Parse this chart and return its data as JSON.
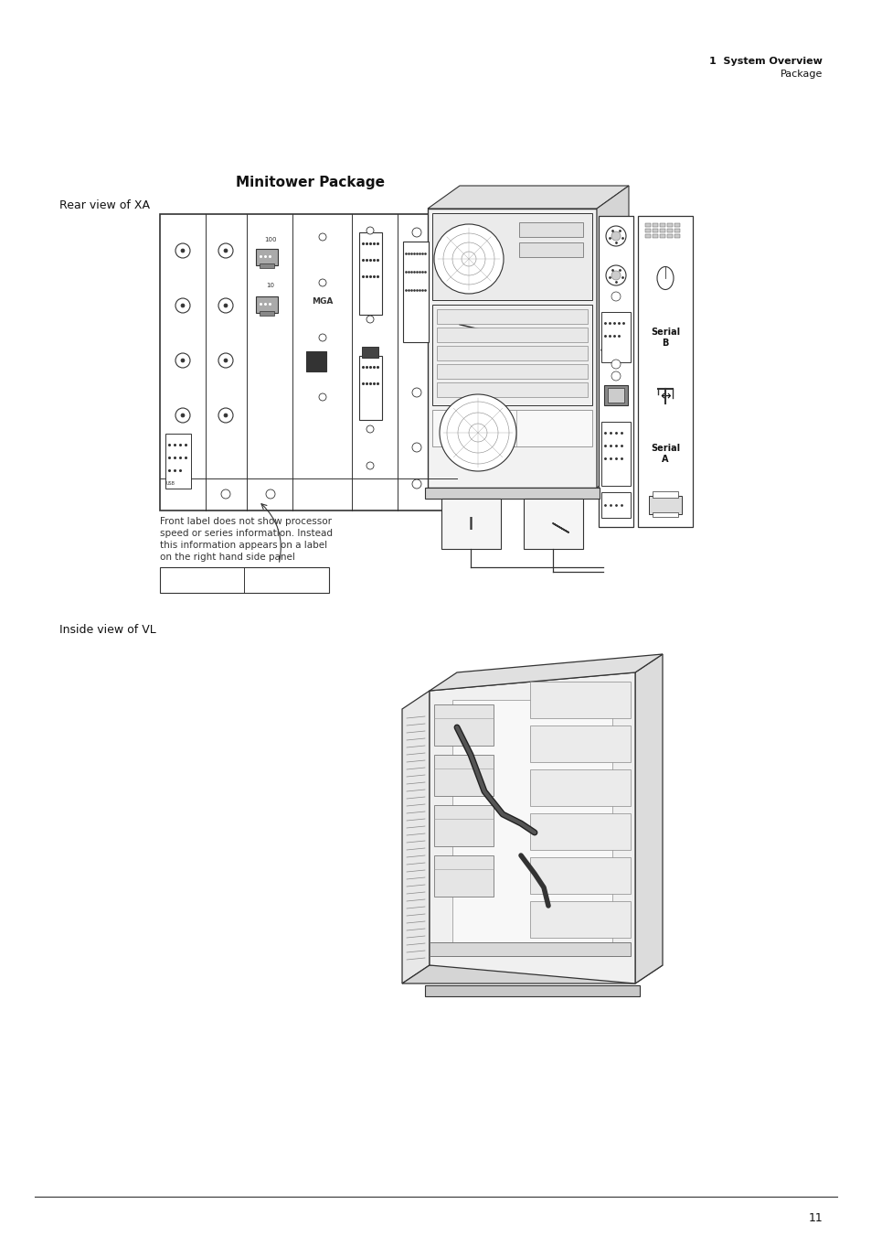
{
  "bg_color": "#ffffff",
  "title_top_right_line1": "1  System Overview",
  "title_top_right_line2": "Package",
  "page_number": "11",
  "main_title": "Minitower Package",
  "section1_label": "Rear view of XA",
  "section2_label": "Inside view of VL",
  "footnote_lines": [
    "Front label does not show processor",
    "speed or series information. Instead",
    "this information appears on a label",
    "on the right hand side panel"
  ],
  "serial_b": "Serial\nB",
  "serial_a": "Serial\nA",
  "mga_label": "MGA",
  "label_100": "100",
  "label_10": "10",
  "text_color": "#111111",
  "line_color": "#333333",
  "light_gray": "#e8e8e8",
  "mid_gray": "#cccccc",
  "dark_gray": "#555555"
}
